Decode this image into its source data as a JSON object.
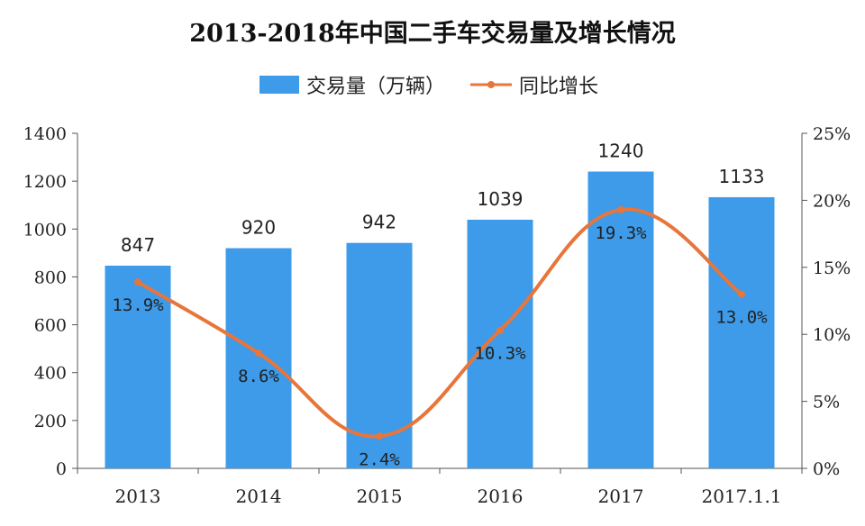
{
  "chart_data": {
    "type": "bar+line",
    "title": "2013-2018年中国二手车交易量及增长情况",
    "categories": [
      "2013",
      "2014",
      "2015",
      "2016",
      "2017",
      "2017.1.1"
    ],
    "series": [
      {
        "name": "交易量（万辆）",
        "type": "bar",
        "axis": "left",
        "values": [
          847,
          920,
          942,
          1039,
          1240,
          1133
        ],
        "labels": [
          "847",
          "920",
          "942",
          "1039",
          "1240",
          "1133"
        ],
        "color": "#3d9be9"
      },
      {
        "name": "同比增长",
        "type": "line",
        "axis": "right",
        "values": [
          13.9,
          8.6,
          2.4,
          10.3,
          19.3,
          13.0
        ],
        "labels": [
          "13.9%",
          "8.6%",
          "2.4%",
          "10.3%",
          "19.3%",
          "13.0%"
        ],
        "color": "#e8753a"
      }
    ],
    "y_left": {
      "min": 0,
      "max": 1400,
      "ticks": [
        "0",
        "200",
        "400",
        "600",
        "800",
        "1000",
        "1200",
        "1400"
      ]
    },
    "y_right": {
      "min": 0,
      "max": 25,
      "ticks": [
        "0%",
        "5%",
        "10%",
        "15%",
        "20%",
        "25%"
      ]
    },
    "legend_position": "top-center",
    "grid": false
  }
}
